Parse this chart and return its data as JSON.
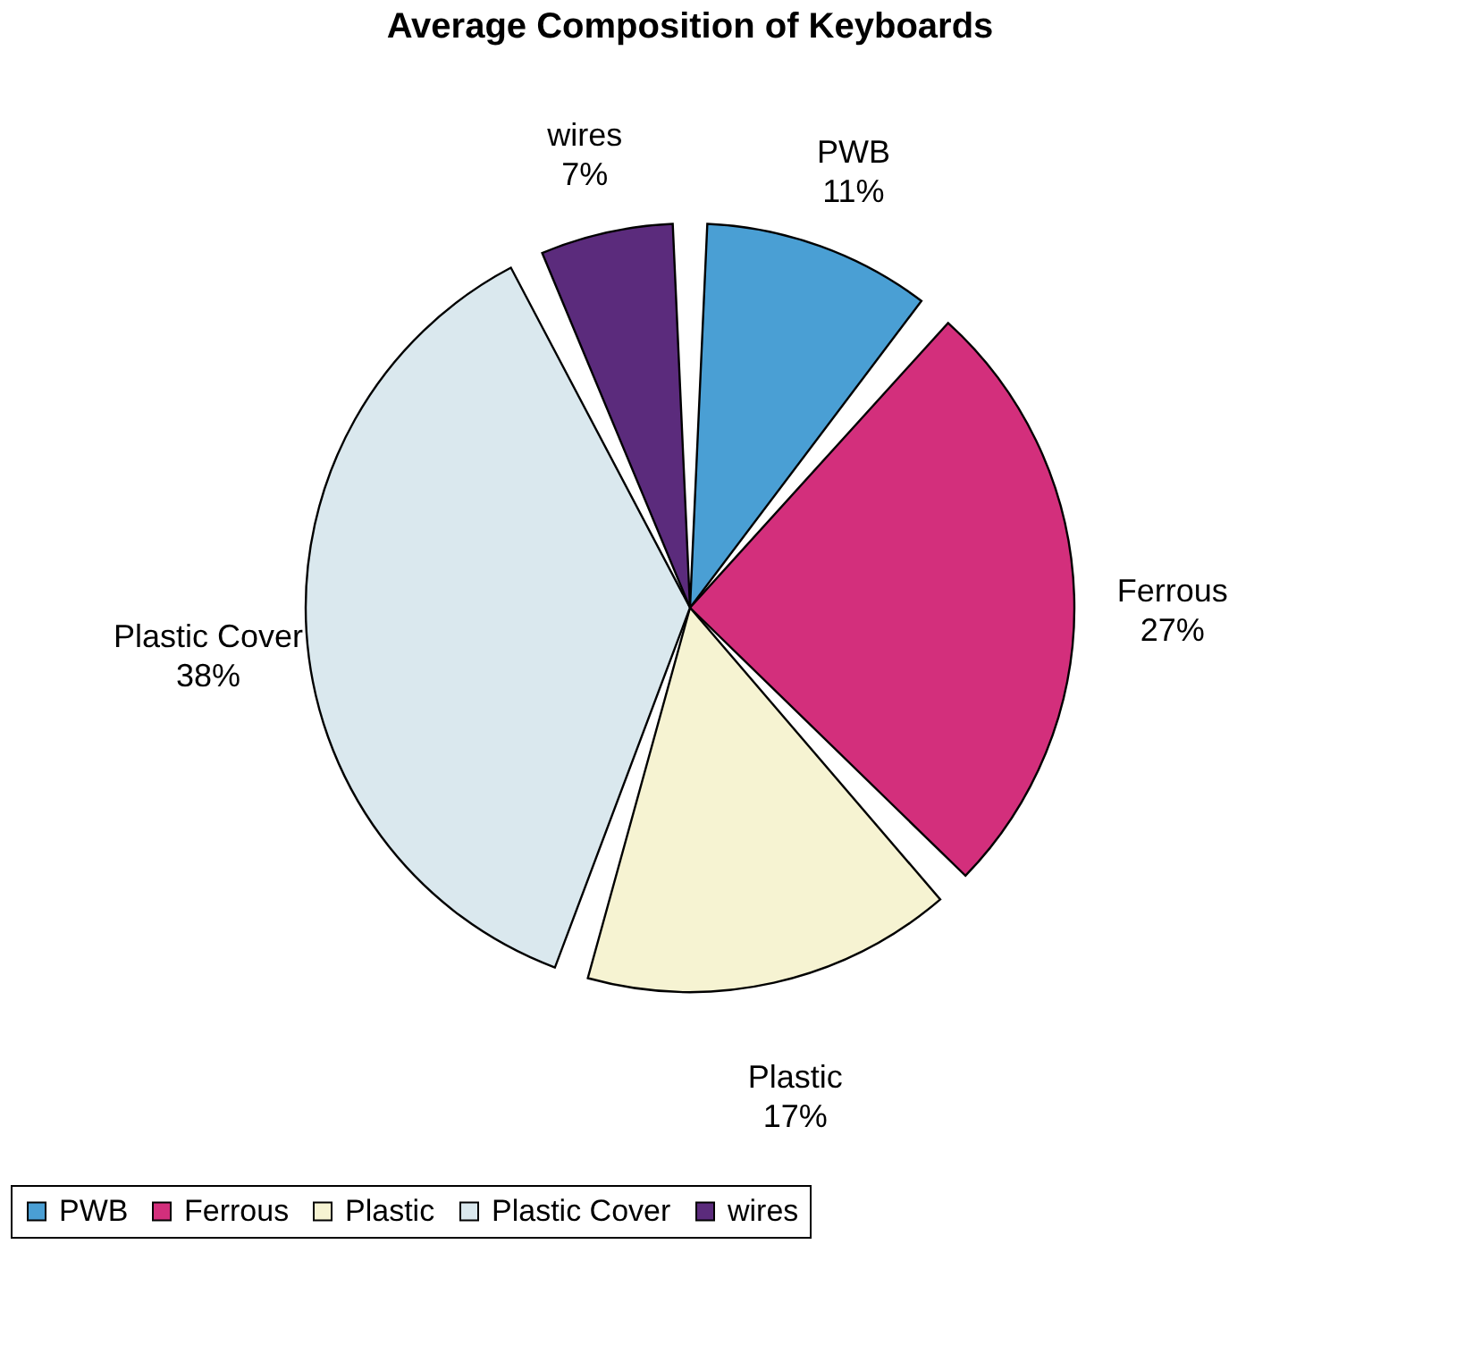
{
  "chart_data": {
    "type": "pie",
    "title": "Average Composition of Keyboards",
    "categories": [
      "PWB",
      "Ferrous",
      "Plastic",
      "Plastic Cover",
      "wires"
    ],
    "values": [
      11,
      27,
      17,
      38,
      7
    ],
    "value_labels": [
      "11%",
      "27%",
      "17%",
      "38%",
      "7%"
    ],
    "colors": [
      "#4a9fd4",
      "#d32f7c",
      "#f6f3d2",
      "#dae8ee",
      "#5b2b7c"
    ],
    "legend": "bottom"
  }
}
